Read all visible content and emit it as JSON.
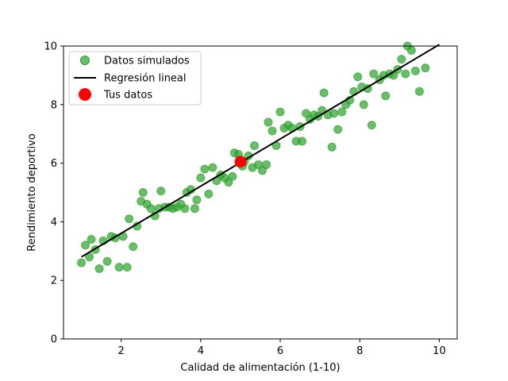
{
  "chart_data": {
    "type": "scatter",
    "title": "",
    "xlabel": "Calidad de alimentación (1-10)",
    "ylabel": "Rendimiento deportivo",
    "xlim": [
      0.55,
      10.45
    ],
    "ylim": [
      0,
      10
    ],
    "xticks": [
      2,
      4,
      6,
      8,
      10
    ],
    "yticks": [
      0,
      2,
      4,
      6,
      8,
      10
    ],
    "grid": false,
    "legend_position": "upper-left",
    "series": [
      {
        "name": "Datos simulados",
        "kind": "scatter",
        "color": "#2ca02c",
        "points": [
          [
            1.0,
            2.6
          ],
          [
            1.1,
            3.2
          ],
          [
            1.2,
            2.8
          ],
          [
            1.25,
            3.4
          ],
          [
            1.35,
            3.05
          ],
          [
            1.45,
            2.4
          ],
          [
            1.55,
            3.35
          ],
          [
            1.65,
            2.65
          ],
          [
            1.75,
            3.5
          ],
          [
            1.85,
            3.45
          ],
          [
            1.95,
            2.45
          ],
          [
            2.05,
            3.5
          ],
          [
            2.15,
            2.45
          ],
          [
            2.2,
            4.1
          ],
          [
            2.3,
            3.15
          ],
          [
            2.4,
            3.85
          ],
          [
            2.5,
            4.7
          ],
          [
            2.55,
            5.0
          ],
          [
            2.65,
            4.6
          ],
          [
            2.75,
            4.45
          ],
          [
            2.85,
            4.2
          ],
          [
            2.95,
            4.45
          ],
          [
            3.0,
            5.05
          ],
          [
            3.1,
            4.5
          ],
          [
            3.2,
            4.5
          ],
          [
            3.3,
            4.45
          ],
          [
            3.4,
            4.5
          ],
          [
            3.5,
            4.6
          ],
          [
            3.6,
            4.45
          ],
          [
            3.65,
            5.0
          ],
          [
            3.75,
            5.1
          ],
          [
            3.85,
            4.45
          ],
          [
            3.9,
            4.75
          ],
          [
            4.0,
            5.5
          ],
          [
            4.1,
            5.8
          ],
          [
            4.2,
            4.95
          ],
          [
            4.3,
            5.85
          ],
          [
            4.4,
            5.4
          ],
          [
            4.5,
            5.6
          ],
          [
            4.6,
            5.5
          ],
          [
            4.7,
            5.35
          ],
          [
            4.8,
            5.55
          ],
          [
            4.85,
            6.35
          ],
          [
            4.95,
            6.3
          ],
          [
            5.05,
            5.9
          ],
          [
            5.1,
            6.05
          ],
          [
            5.2,
            6.25
          ],
          [
            5.3,
            5.85
          ],
          [
            5.35,
            6.6
          ],
          [
            5.45,
            5.95
          ],
          [
            5.55,
            5.75
          ],
          [
            5.65,
            5.95
          ],
          [
            5.7,
            7.4
          ],
          [
            5.8,
            7.1
          ],
          [
            5.9,
            6.6
          ],
          [
            6.0,
            7.75
          ],
          [
            6.1,
            7.2
          ],
          [
            6.2,
            7.3
          ],
          [
            6.3,
            7.2
          ],
          [
            6.4,
            6.75
          ],
          [
            6.5,
            7.25
          ],
          [
            6.55,
            6.75
          ],
          [
            6.65,
            7.7
          ],
          [
            6.75,
            7.5
          ],
          [
            6.85,
            7.65
          ],
          [
            6.95,
            7.6
          ],
          [
            7.05,
            7.8
          ],
          [
            7.1,
            8.4
          ],
          [
            7.2,
            7.65
          ],
          [
            7.3,
            6.55
          ],
          [
            7.35,
            7.7
          ],
          [
            7.45,
            7.15
          ],
          [
            7.55,
            7.75
          ],
          [
            7.65,
            8.0
          ],
          [
            7.75,
            8.15
          ],
          [
            7.85,
            8.45
          ],
          [
            7.95,
            8.95
          ],
          [
            8.05,
            8.6
          ],
          [
            8.1,
            8.0
          ],
          [
            8.2,
            8.55
          ],
          [
            8.3,
            7.3
          ],
          [
            8.35,
            9.05
          ],
          [
            8.5,
            8.85
          ],
          [
            8.6,
            9.0
          ],
          [
            8.65,
            8.3
          ],
          [
            8.75,
            9.05
          ],
          [
            8.85,
            9.0
          ],
          [
            8.95,
            9.2
          ],
          [
            9.05,
            9.55
          ],
          [
            9.15,
            9.05
          ],
          [
            9.2,
            10.0
          ],
          [
            9.3,
            9.85
          ],
          [
            9.4,
            9.15
          ],
          [
            9.5,
            8.45
          ],
          [
            9.65,
            9.25
          ]
        ]
      },
      {
        "name": "Regresión lineal",
        "kind": "line",
        "color": "#000000",
        "points": [
          [
            1.0,
            2.8
          ],
          [
            10.0,
            10.05
          ]
        ]
      },
      {
        "name": "Tus datos",
        "kind": "highlight",
        "color": "#ff0000",
        "points": [
          [
            5.0,
            6.05
          ]
        ]
      }
    ]
  }
}
